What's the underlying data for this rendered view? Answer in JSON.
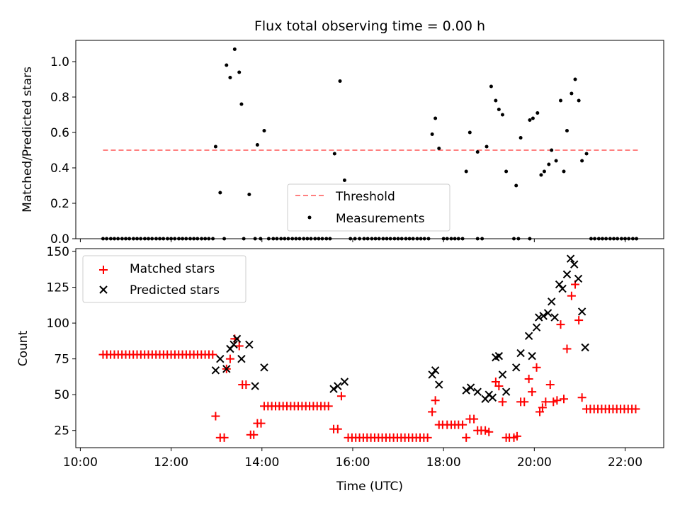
{
  "figure": {
    "title": "Flux total observing time = 0.00 h"
  },
  "colors": {
    "threshold": "#ff8080",
    "measurement": "#000000",
    "matched": "#ff0000",
    "predicted": "#000000"
  },
  "chart_data": [
    {
      "type": "scatter",
      "title": "Flux total observing time = 0.00 h",
      "ylabel": "Matched/Predicted stars",
      "xlabel": "",
      "xlim": [
        9.9,
        22.85
      ],
      "ylim": [
        0,
        1.12
      ],
      "x_ticks": [
        10,
        12,
        14,
        16,
        18,
        20,
        22
      ],
      "y_ticks": [
        0.0,
        0.2,
        0.4,
        0.6,
        0.8,
        1.0
      ],
      "y_tick_labels": [
        "0.0",
        "0.2",
        "0.4",
        "0.6",
        "0.8",
        "1.0"
      ],
      "legend": {
        "position": "lower-center",
        "entries": [
          "Threshold",
          "Measurements"
        ]
      },
      "threshold": {
        "name": "Threshold",
        "x": [
          10.5,
          22.3
        ],
        "y": 0.5,
        "style": "dashed"
      },
      "measurements": {
        "name": "Measurements",
        "zeros_x": [
          10.5,
          10.58,
          10.67,
          10.75,
          10.83,
          10.92,
          11.0,
          11.08,
          11.17,
          11.25,
          11.33,
          11.42,
          11.5,
          11.58,
          11.67,
          11.75,
          11.83,
          11.92,
          12.0,
          12.08,
          12.17,
          12.25,
          12.33,
          12.42,
          12.5,
          12.58,
          12.67,
          12.75,
          12.83,
          12.92,
          13.17,
          13.6,
          13.85,
          13.97,
          14.15,
          14.25,
          14.33,
          14.42,
          14.5,
          14.58,
          14.67,
          14.75,
          14.83,
          14.92,
          15.0,
          15.08,
          15.17,
          15.25,
          15.33,
          15.42,
          15.5,
          15.95,
          16.05,
          16.15,
          16.25,
          16.33,
          16.42,
          16.5,
          16.58,
          16.67,
          16.75,
          16.83,
          16.92,
          17.0,
          17.08,
          17.17,
          17.25,
          17.33,
          17.42,
          17.5,
          17.58,
          17.67,
          18.0,
          18.08,
          18.17,
          18.25,
          18.33,
          18.42,
          18.75,
          18.85,
          19.55,
          19.65,
          19.9,
          21.25,
          21.33,
          21.42,
          21.5,
          21.58,
          21.67,
          21.75,
          21.83,
          21.92,
          22.0,
          22.08,
          22.17,
          22.25
        ],
        "points": [
          [
            12.98,
            0.52
          ],
          [
            13.08,
            0.26
          ],
          [
            13.22,
            0.98
          ],
          [
            13.3,
            0.91
          ],
          [
            13.4,
            1.07
          ],
          [
            13.5,
            0.94
          ],
          [
            13.55,
            0.76
          ],
          [
            13.72,
            0.25
          ],
          [
            13.9,
            0.53
          ],
          [
            14.05,
            0.61
          ],
          [
            15.6,
            0.48
          ],
          [
            15.72,
            0.89
          ],
          [
            15.82,
            0.33
          ],
          [
            17.75,
            0.59
          ],
          [
            17.82,
            0.68
          ],
          [
            17.9,
            0.51
          ],
          [
            18.5,
            0.38
          ],
          [
            18.58,
            0.6
          ],
          [
            18.75,
            0.49
          ],
          [
            18.95,
            0.52
          ],
          [
            19.05,
            0.86
          ],
          [
            19.15,
            0.78
          ],
          [
            19.22,
            0.73
          ],
          [
            19.3,
            0.7
          ],
          [
            19.38,
            0.38
          ],
          [
            19.6,
            0.3
          ],
          [
            19.7,
            0.57
          ],
          [
            19.9,
            0.67
          ],
          [
            19.97,
            0.68
          ],
          [
            20.07,
            0.71
          ],
          [
            20.15,
            0.36
          ],
          [
            20.22,
            0.38
          ],
          [
            20.32,
            0.42
          ],
          [
            20.38,
            0.5
          ],
          [
            20.48,
            0.44
          ],
          [
            20.58,
            0.78
          ],
          [
            20.65,
            0.38
          ],
          [
            20.72,
            0.61
          ],
          [
            20.82,
            0.82
          ],
          [
            20.9,
            0.9
          ],
          [
            20.98,
            0.78
          ],
          [
            21.05,
            0.44
          ],
          [
            21.15,
            0.48
          ]
        ]
      }
    },
    {
      "type": "scatter",
      "title": "",
      "xlabel": "Time (UTC)",
      "ylabel": "Count",
      "xlim": [
        9.9,
        22.85
      ],
      "ylim": [
        13,
        152
      ],
      "x_ticks": [
        10,
        12,
        14,
        16,
        18,
        20,
        22
      ],
      "x_tick_labels": [
        "10:00",
        "12:00",
        "14:00",
        "16:00",
        "18:00",
        "20:00",
        "22:00"
      ],
      "y_ticks": [
        25,
        50,
        75,
        100,
        125,
        150
      ],
      "legend": {
        "position": "top-left",
        "entries": [
          "Matched stars",
          "Predicted stars"
        ]
      },
      "matched": {
        "name": "Matched stars",
        "flat_runs": [
          {
            "x_start": 10.5,
            "x_end": 12.92,
            "step": 0.0833,
            "y": 78
          },
          {
            "x_start": 14.05,
            "x_end": 15.5,
            "step": 0.0833,
            "y": 42
          },
          {
            "x_start": 15.9,
            "x_end": 17.67,
            "step": 0.0833,
            "y": 20
          },
          {
            "x_start": 21.15,
            "x_end": 22.25,
            "step": 0.0833,
            "y": 40
          }
        ],
        "points": [
          [
            12.98,
            35
          ],
          [
            13.08,
            20
          ],
          [
            13.17,
            20
          ],
          [
            13.22,
            68
          ],
          [
            13.3,
            75
          ],
          [
            13.4,
            89
          ],
          [
            13.5,
            84
          ],
          [
            13.57,
            57
          ],
          [
            13.65,
            57
          ],
          [
            13.75,
            22
          ],
          [
            13.82,
            22
          ],
          [
            13.9,
            30
          ],
          [
            13.98,
            30
          ],
          [
            15.58,
            26
          ],
          [
            15.67,
            26
          ],
          [
            15.75,
            49
          ],
          [
            17.75,
            38
          ],
          [
            17.82,
            46
          ],
          [
            17.9,
            29
          ],
          [
            17.98,
            29
          ],
          [
            18.08,
            29
          ],
          [
            18.17,
            29
          ],
          [
            18.25,
            29
          ],
          [
            18.33,
            29
          ],
          [
            18.42,
            29
          ],
          [
            18.5,
            20
          ],
          [
            18.58,
            33
          ],
          [
            18.67,
            33
          ],
          [
            18.75,
            25
          ],
          [
            18.83,
            25
          ],
          [
            18.92,
            25
          ],
          [
            19.0,
            24
          ],
          [
            19.15,
            59
          ],
          [
            19.22,
            56
          ],
          [
            19.3,
            45
          ],
          [
            19.38,
            20
          ],
          [
            19.45,
            20
          ],
          [
            19.55,
            20
          ],
          [
            19.62,
            21
          ],
          [
            19.7,
            45
          ],
          [
            19.78,
            45
          ],
          [
            19.88,
            61
          ],
          [
            19.95,
            52
          ],
          [
            20.05,
            69
          ],
          [
            20.12,
            38
          ],
          [
            20.18,
            41
          ],
          [
            20.25,
            45
          ],
          [
            20.35,
            57
          ],
          [
            20.42,
            45
          ],
          [
            20.5,
            46
          ],
          [
            20.58,
            99
          ],
          [
            20.65,
            47
          ],
          [
            20.72,
            82
          ],
          [
            20.82,
            119
          ],
          [
            20.9,
            127
          ],
          [
            20.98,
            102
          ],
          [
            21.05,
            48
          ]
        ]
      },
      "predicted": {
        "name": "Predicted stars",
        "points": [
          [
            12.98,
            67
          ],
          [
            13.08,
            75
          ],
          [
            13.22,
            68
          ],
          [
            13.3,
            82
          ],
          [
            13.38,
            85
          ],
          [
            13.45,
            89
          ],
          [
            13.55,
            75
          ],
          [
            13.72,
            85
          ],
          [
            13.85,
            56
          ],
          [
            14.05,
            69
          ],
          [
            15.58,
            54
          ],
          [
            15.67,
            56
          ],
          [
            15.82,
            59
          ],
          [
            17.75,
            64
          ],
          [
            17.82,
            67
          ],
          [
            17.9,
            57
          ],
          [
            18.5,
            53
          ],
          [
            18.6,
            55
          ],
          [
            18.75,
            52
          ],
          [
            18.92,
            47
          ],
          [
            19.0,
            50
          ],
          [
            19.08,
            48
          ],
          [
            19.15,
            76
          ],
          [
            19.22,
            77
          ],
          [
            19.3,
            64
          ],
          [
            19.38,
            52
          ],
          [
            19.6,
            69
          ],
          [
            19.7,
            79
          ],
          [
            19.88,
            91
          ],
          [
            19.95,
            77
          ],
          [
            20.05,
            97
          ],
          [
            20.1,
            104
          ],
          [
            20.2,
            105
          ],
          [
            20.3,
            107
          ],
          [
            20.38,
            115
          ],
          [
            20.45,
            104
          ],
          [
            20.55,
            127
          ],
          [
            20.62,
            124
          ],
          [
            20.72,
            134
          ],
          [
            20.8,
            145
          ],
          [
            20.88,
            141
          ],
          [
            20.97,
            131
          ],
          [
            21.05,
            108
          ],
          [
            21.12,
            83
          ]
        ]
      }
    }
  ]
}
